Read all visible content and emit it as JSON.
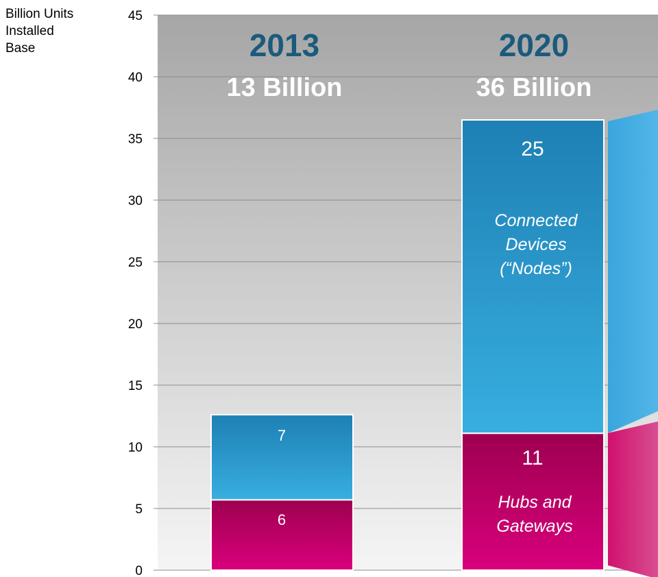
{
  "chart_data": {
    "type": "bar",
    "stacked": true,
    "ylabel_lines": [
      "Billion Units",
      "Installed",
      "Base"
    ],
    "ylim": [
      0,
      45
    ],
    "yticks": [
      0,
      5,
      10,
      15,
      20,
      25,
      30,
      35,
      40,
      45
    ],
    "grid": true,
    "categories": [
      "2013",
      "2020"
    ],
    "totals_label": [
      "13 Billion",
      "36 Billion"
    ],
    "series": [
      {
        "name": "Hubs and Gateways",
        "values": [
          5.7,
          11.1
        ],
        "labels": [
          "6",
          "11"
        ],
        "color_top": "#9e0050",
        "color_bottom": "#d9007c"
      },
      {
        "name": "Connected Devices (“Nodes”)",
        "values": [
          6.9,
          25.4
        ],
        "labels": [
          "7",
          "25"
        ],
        "color_top": "#1e80b4",
        "color_bottom": "#38aee0"
      }
    ],
    "inner_labels_2020": {
      "nodes": [
        "Connected",
        "Devices",
        "(“Nodes”)"
      ],
      "hubs": [
        "Hubs and",
        "Gateways"
      ]
    },
    "colors": {
      "year_text": "#1b5a7c",
      "grid": "#8c8c8c"
    }
  }
}
